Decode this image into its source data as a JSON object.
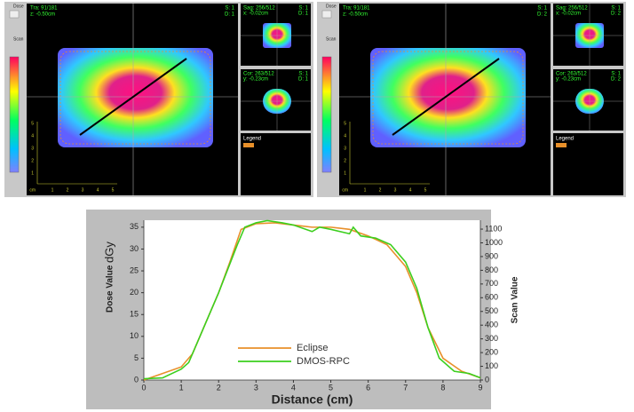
{
  "panels": [
    {
      "dose_label": "Dose",
      "scan_label": "Scan",
      "main": [
        "Tra: 91/181",
        "z: -0.50cm"
      ],
      "main_sd": [
        "S: 1",
        "D: 1"
      ],
      "sag": [
        "Sag: 256/512",
        "x: -0.02cm"
      ],
      "sag_sd": [
        "S: 1",
        "D: 1"
      ],
      "cor": [
        "Cor: 263/512",
        "y: -0.23cm"
      ],
      "cor_sd": [
        "S: 1",
        "D: 1"
      ],
      "legend": "Legend",
      "cm": "cm",
      "x_ticks": [
        1,
        2,
        3,
        4,
        5
      ],
      "y_ticks": [
        5,
        4,
        3,
        2,
        1
      ]
    },
    {
      "dose_label": "Dose",
      "scan_label": "Scan",
      "main": [
        "Tra: 91/181",
        "z: -0.50cm"
      ],
      "main_sd": [
        "S: 1",
        "D: 2"
      ],
      "sag": [
        "Sag: 256/512",
        "x: -0.02cm"
      ],
      "sag_sd": [
        "S: 1",
        "D: 2"
      ],
      "cor": [
        "Cor: 263/512",
        "y: -0.23cm"
      ],
      "cor_sd": [
        "S: 1",
        "D: 2"
      ],
      "legend": "Legend",
      "cm": "cm",
      "x_ticks": [
        1,
        2,
        3,
        4,
        5
      ],
      "y_ticks": [
        5,
        4,
        3,
        2,
        1
      ]
    }
  ],
  "chart_data": {
    "type": "line",
    "xlabel": "Distance (cm)",
    "ylabel": "Dose Value",
    "ylabel_unit": "dGy",
    "y2label": "Scan Value",
    "xlim": [
      0,
      9
    ],
    "xticks": [
      0,
      1,
      2,
      3,
      4,
      5,
      6,
      7,
      8,
      9
    ],
    "ylim": [
      0,
      36.6
    ],
    "yticks": [
      0,
      5,
      10,
      15,
      20,
      25,
      30,
      35
    ],
    "y2lim": [
      0,
      1165
    ],
    "y2ticks": [
      0,
      100,
      200,
      300,
      400,
      500,
      600,
      700,
      800,
      900,
      1000,
      1100
    ],
    "series": [
      {
        "name": "Eclipse",
        "color": "#e8902a",
        "x": [
          0,
          0.5,
          1,
          1.3,
          1.6,
          2,
          2.3,
          2.6,
          3,
          3.5,
          4,
          4.5,
          5,
          5.5,
          6,
          6.5,
          7,
          7.3,
          7.6,
          8,
          8.5,
          9
        ],
        "values": [
          0,
          1.5,
          3,
          6,
          12,
          20,
          27,
          34.5,
          35.8,
          36,
          35.5,
          35,
          35,
          34.5,
          33,
          31,
          26,
          20,
          12,
          5,
          2,
          0.5
        ]
      },
      {
        "name": "DMOS-RPC",
        "color": "#3ccf1e",
        "x": [
          0,
          0.5,
          1,
          1.2,
          1.5,
          2,
          2.5,
          2.7,
          3,
          3.3,
          3.7,
          4,
          4.5,
          4.7,
          5,
          5.5,
          5.6,
          5.8,
          6.2,
          6.6,
          7,
          7.3,
          7.6,
          7.9,
          8.3,
          8.7,
          9
        ],
        "values": [
          0.3,
          0.5,
          2.5,
          4,
          10,
          20,
          31,
          35,
          36,
          36.5,
          36,
          35.5,
          34,
          35,
          34.5,
          33.5,
          35,
          33,
          32.5,
          31,
          27,
          21,
          12,
          5,
          2,
          1.5,
          0.5
        ]
      }
    ]
  }
}
